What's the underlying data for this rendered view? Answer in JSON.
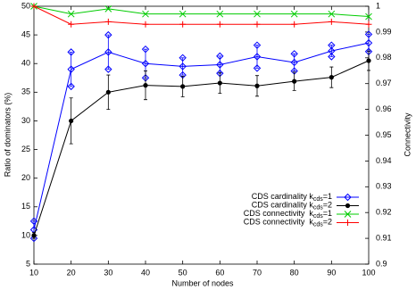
{
  "chart_data": {
    "type": "line",
    "x_label": "Number of nodes",
    "y_label": "Ratio of dominators (%)",
    "y2_label": "Connectivity",
    "x": [
      10,
      20,
      30,
      40,
      50,
      60,
      70,
      80,
      90,
      100
    ],
    "xlim": [
      10,
      100
    ],
    "xticks": [
      10,
      20,
      30,
      40,
      50,
      60,
      70,
      80,
      90,
      100
    ],
    "ylim": [
      5,
      50
    ],
    "yticks": [
      5,
      10,
      15,
      20,
      25,
      30,
      35,
      40,
      45,
      50
    ],
    "y2lim": [
      0.9,
      1
    ],
    "y2ticks": [
      0.9,
      0.91,
      0.92,
      0.93,
      0.94,
      0.95,
      0.96,
      0.97,
      0.98,
      0.99,
      1
    ],
    "series": [
      {
        "name": "CDS cardinality k",
        "subscript": "cds",
        "suffix": "=1",
        "color": "#0000ff",
        "marker": "diamond",
        "values": [
          11,
          39,
          42,
          40,
          39.5,
          39.8,
          41.2,
          40.2,
          42.2,
          43.6
        ],
        "errors": [
          1.5,
          3,
          3,
          2.5,
          1.5,
          1.5,
          2,
          1.5,
          1,
          1.5
        ]
      },
      {
        "name": "CDS cardinality k",
        "subscript": "cds",
        "suffix": "=2",
        "color": "#000000",
        "marker": "circle",
        "values": [
          10,
          30,
          35,
          36.2,
          36,
          36.6,
          36.1,
          36.9,
          37.6,
          40.5
        ],
        "errors": [
          0.5,
          4,
          3,
          2.5,
          1.8,
          1.8,
          1.8,
          1.6,
          1.8,
          1.7
        ]
      },
      {
        "name": "CDS connectivity  k",
        "subscript": "cds",
        "suffix": "=1",
        "color": "#00cc00",
        "marker": "x",
        "axis": "y2",
        "values": [
          1,
          0.997,
          0.999,
          0.997,
          0.997,
          0.997,
          0.997,
          0.997,
          0.997,
          0.996
        ]
      },
      {
        "name": "CDS connectivity  k",
        "subscript": "cds",
        "suffix": "=2",
        "color": "#ff0000",
        "marker": "plus",
        "axis": "y2",
        "values": [
          1,
          0.993,
          0.994,
          0.993,
          0.993,
          0.993,
          0.993,
          0.993,
          0.994,
          0.993
        ]
      }
    ]
  }
}
